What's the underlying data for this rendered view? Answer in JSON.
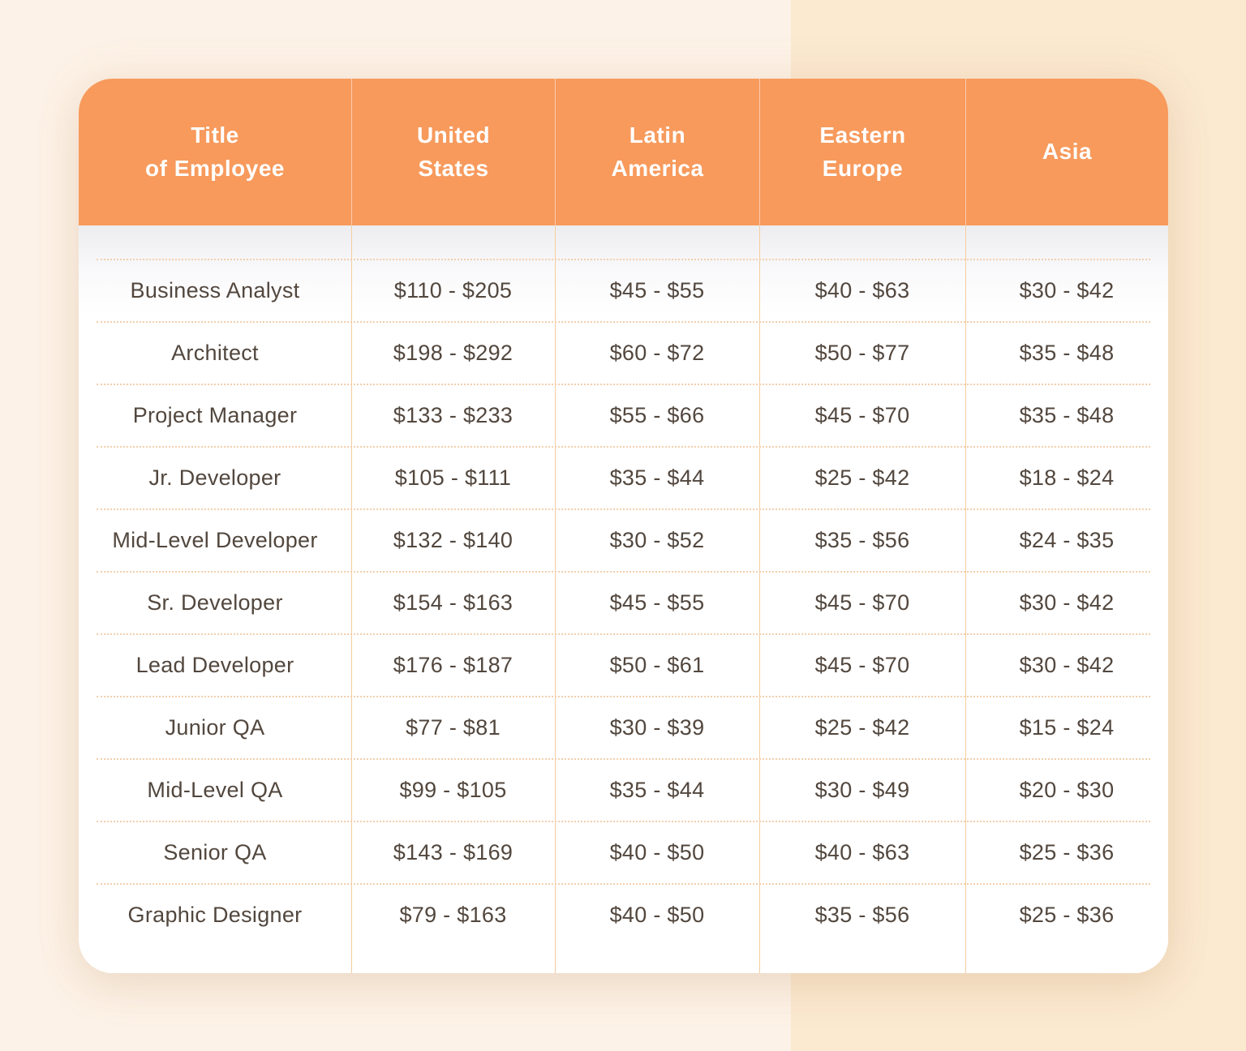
{
  "colors": {
    "bg_left": "#FDF2E7",
    "bg_right": "#FBE9D0",
    "header_bg": "#F79A5C",
    "header_text": "#FFFFFF",
    "body_text": "#52473E",
    "divider": "#F4CD9F",
    "dotted": "#F3CFAC"
  },
  "chart_data": {
    "type": "table",
    "columns": [
      "Title\nof Employee",
      "United\nStates",
      "Latin\nAmerica",
      "Eastern\nEurope",
      "Asia"
    ],
    "rows": [
      [
        "Business Analyst",
        "$110 - $205",
        "$45 - $55",
        "$40 - $63",
        "$30 - $42"
      ],
      [
        "Architect",
        "$198 - $292",
        "$60 - $72",
        "$50 - $77",
        "$35 - $48"
      ],
      [
        "Project Manager",
        "$133 - $233",
        "$55 - $66",
        "$45 - $70",
        "$35 - $48"
      ],
      [
        "Jr. Developer",
        "$105 - $111",
        "$35 - $44",
        "$25 - $42",
        "$18 - $24"
      ],
      [
        "Mid-Level Developer",
        "$132 - $140",
        "$30 - $52",
        "$35 - $56",
        "$24 - $35"
      ],
      [
        "Sr. Developer",
        "$154 - $163",
        "$45 - $55",
        "$45 - $70",
        "$30 - $42"
      ],
      [
        "Lead Developer",
        "$176 - $187",
        "$50 - $61",
        "$45 - $70",
        "$30 - $42"
      ],
      [
        "Junior QA",
        "$77 - $81",
        "$30 - $39",
        "$25 - $42",
        "$15 - $24"
      ],
      [
        "Mid-Level QA",
        "$99 - $105",
        "$35 - $44",
        "$30 - $49",
        "$20 - $30"
      ],
      [
        "Senior QA",
        "$143 - $169",
        "$40 - $50",
        "$40 - $63",
        "$25 - $36"
      ],
      [
        "Graphic Designer",
        "$79 - $163",
        "$40 - $50",
        "$35 - $56",
        "$25 - $36"
      ]
    ]
  }
}
